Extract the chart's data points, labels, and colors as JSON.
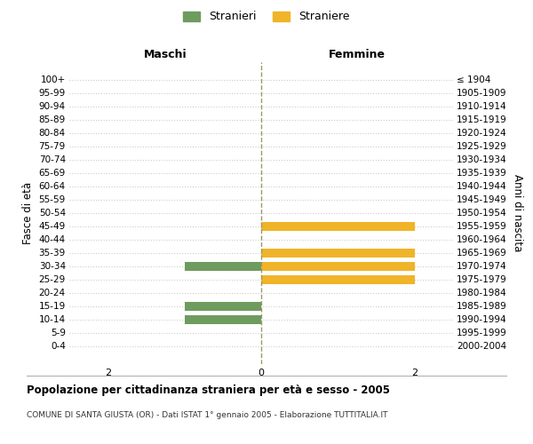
{
  "age_groups": [
    "100+",
    "95-99",
    "90-94",
    "85-89",
    "80-84",
    "75-79",
    "70-74",
    "65-69",
    "60-64",
    "55-59",
    "50-54",
    "45-49",
    "40-44",
    "35-39",
    "30-34",
    "25-29",
    "20-24",
    "15-19",
    "10-14",
    "5-9",
    "0-4"
  ],
  "birth_years": [
    "≤ 1904",
    "1905-1909",
    "1910-1914",
    "1915-1919",
    "1920-1924",
    "1925-1929",
    "1930-1934",
    "1935-1939",
    "1940-1944",
    "1945-1949",
    "1950-1954",
    "1955-1959",
    "1960-1964",
    "1965-1969",
    "1970-1974",
    "1975-1979",
    "1980-1984",
    "1985-1989",
    "1990-1994",
    "1995-1999",
    "2000-2004"
  ],
  "males": [
    0,
    0,
    0,
    0,
    0,
    0,
    0,
    0,
    0,
    0,
    0,
    0,
    0,
    0,
    1,
    0,
    0,
    1,
    1,
    0,
    0
  ],
  "females": [
    0,
    0,
    0,
    0,
    0,
    0,
    0,
    0,
    0,
    0,
    0,
    2,
    0,
    2,
    2,
    2,
    0,
    0,
    0,
    0,
    0
  ],
  "male_color": "#6e9b5e",
  "female_color": "#f0b429",
  "male_label": "Stranieri",
  "female_label": "Straniere",
  "title": "Popolazione per cittadinanza straniera per età e sesso - 2005",
  "subtitle": "COMUNE DI SANTA GIUSTA (OR) - Dati ISTAT 1° gennaio 2005 - Elaborazione TUTTITALIA.IT",
  "xlabel_left": "Maschi",
  "xlabel_right": "Femmine",
  "ylabel_left": "Fasce di età",
  "ylabel_right": "Anni di nascita",
  "xlim": 2.5,
  "bg_color": "#ffffff",
  "grid_color": "#cccccc"
}
